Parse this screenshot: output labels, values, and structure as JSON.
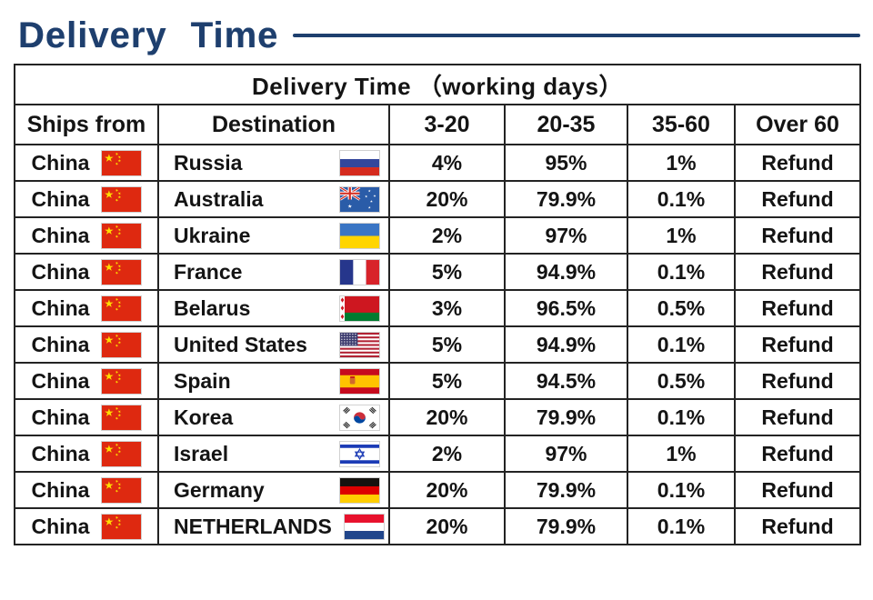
{
  "title": {
    "text": "Delivery Time"
  },
  "colors": {
    "title_navy": "#1e3f6e",
    "table_border": "#232323",
    "text": "#141414"
  },
  "table": {
    "caption": "Delivery Time （working days）",
    "columns": [
      "Ships from",
      "Destination",
      "3-20",
      "20-35",
      "35-60",
      "Over 60"
    ],
    "rows": [
      {
        "ship_from": "China",
        "ship_flag": "china-flag-icon",
        "destination": "Russia",
        "dest_flag": "russia-flag-icon",
        "values": [
          "4%",
          "95%",
          "1%",
          "Refund"
        ]
      },
      {
        "ship_from": "China",
        "ship_flag": "china-flag-icon",
        "destination": "Australia",
        "dest_flag": "australia-flag-icon",
        "values": [
          "20%",
          "79.9%",
          "0.1%",
          "Refund"
        ]
      },
      {
        "ship_from": "China",
        "ship_flag": "china-flag-icon",
        "destination": "Ukraine",
        "dest_flag": "ukraine-flag-icon",
        "values": [
          "2%",
          "97%",
          "1%",
          "Refund"
        ]
      },
      {
        "ship_from": "China",
        "ship_flag": "china-flag-icon",
        "destination": "France",
        "dest_flag": "france-flag-icon",
        "values": [
          "5%",
          "94.9%",
          "0.1%",
          "Refund"
        ]
      },
      {
        "ship_from": "China",
        "ship_flag": "china-flag-icon",
        "destination": "Belarus",
        "dest_flag": "belarus-flag-icon",
        "values": [
          "3%",
          "96.5%",
          "0.5%",
          "Refund"
        ]
      },
      {
        "ship_from": "China",
        "ship_flag": "china-flag-icon",
        "destination": "United States",
        "dest_flag": "united-states-flag-icon",
        "values": [
          "5%",
          "94.9%",
          "0.1%",
          "Refund"
        ]
      },
      {
        "ship_from": "China",
        "ship_flag": "china-flag-icon",
        "destination": "Spain",
        "dest_flag": "spain-flag-icon",
        "values": [
          "5%",
          "94.5%",
          "0.5%",
          "Refund"
        ]
      },
      {
        "ship_from": "China",
        "ship_flag": "china-flag-icon",
        "destination": "Korea",
        "dest_flag": "korea-flag-icon",
        "values": [
          "20%",
          "79.9%",
          "0.1%",
          "Refund"
        ]
      },
      {
        "ship_from": "China",
        "ship_flag": "china-flag-icon",
        "destination": "Israel",
        "dest_flag": "israel-flag-icon",
        "values": [
          "2%",
          "97%",
          "1%",
          "Refund"
        ]
      },
      {
        "ship_from": "China",
        "ship_flag": "china-flag-icon",
        "destination": "Germany",
        "dest_flag": "germany-flag-icon",
        "values": [
          "20%",
          "79.9%",
          "0.1%",
          "Refund"
        ]
      },
      {
        "ship_from": "China",
        "ship_flag": "china-flag-icon",
        "destination": "NETHERLANDS",
        "dest_flag": "netherlands-flag-icon",
        "values": [
          "20%",
          "79.9%",
          "0.1%",
          "Refund"
        ]
      }
    ]
  }
}
